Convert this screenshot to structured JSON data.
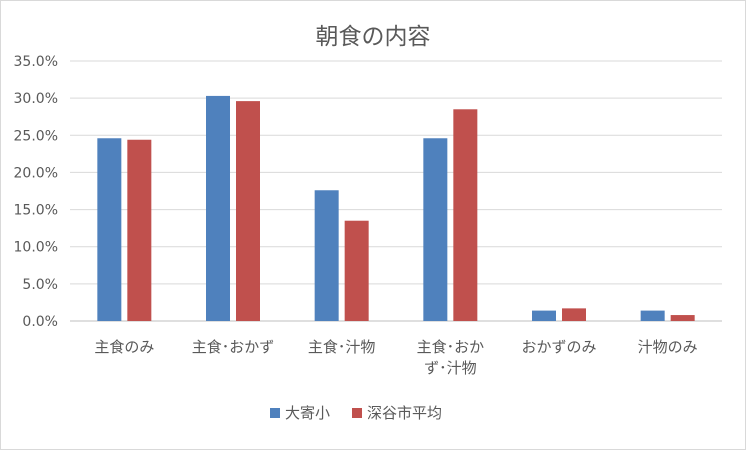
{
  "chart_data": {
    "type": "bar",
    "title": "朝食の内容",
    "categories": [
      [
        "主食のみ"
      ],
      [
        "主食･おかず"
      ],
      [
        "主食･汁物"
      ],
      [
        "主食･おか",
        "ず･汁物"
      ],
      [
        "おかずのみ"
      ],
      [
        "汁物のみ"
      ]
    ],
    "series": [
      {
        "name": "大寄小",
        "color": "#4f81bd",
        "values": [
          24.6,
          30.3,
          17.6,
          24.6,
          1.4,
          1.4
        ]
      },
      {
        "name": "深谷市平均",
        "color": "#c0504d",
        "values": [
          24.4,
          29.6,
          13.5,
          28.5,
          1.7,
          0.8
        ]
      }
    ],
    "ylim": [
      0,
      35
    ],
    "yticks": [
      "0.0%",
      "5.0%",
      "10.0%",
      "15.0%",
      "20.0%",
      "25.0%",
      "30.0%",
      "35.0%"
    ],
    "ytick_values": [
      0,
      5,
      10,
      15,
      20,
      25,
      30,
      35
    ],
    "grid": true,
    "legend_position": "bottom"
  }
}
